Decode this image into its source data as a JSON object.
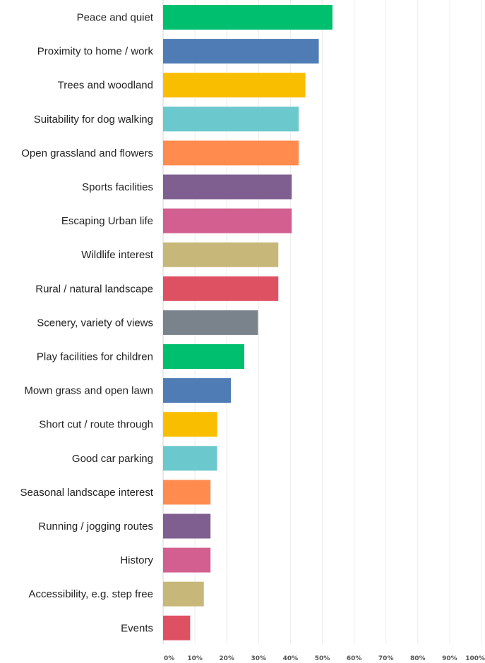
{
  "chart_data": {
    "type": "bar",
    "orientation": "horizontal",
    "title": "",
    "xlabel": "",
    "ylabel": "",
    "xlim": [
      0,
      100
    ],
    "grid": true,
    "legend": "none",
    "tick_values": [
      0,
      10,
      20,
      30,
      40,
      50,
      60,
      70,
      80,
      90,
      100
    ],
    "tick_labels": [
      "0%",
      "10%",
      "20%",
      "30%",
      "40%",
      "50%",
      "60%",
      "70%",
      "80%",
      "90%",
      "100%"
    ],
    "categories": [
      "Peace and quiet",
      "Proximity to home  / work",
      "Trees and woodland",
      "Suitability for dog walking",
      "Open grassland and flowers",
      "Sports facilities",
      "Escaping Urban life",
      "Wildlife interest",
      "Rural  / natural landscape",
      "Scenery, variety of views",
      "Play facilities for children",
      "Mown grass and open lawn",
      "Short cut / route through",
      "Good car parking",
      "Seasonal landscape interest",
      "Running / jogging routes",
      "History",
      "Accessibility, e.g. step free",
      "Events"
    ],
    "values": [
      53.2,
      48.9,
      44.7,
      42.6,
      42.6,
      40.4,
      40.4,
      36.2,
      36.2,
      29.8,
      25.5,
      21.3,
      17.0,
      17.0,
      14.9,
      14.9,
      14.9,
      12.8,
      8.5
    ],
    "colors": [
      "#00bf6f",
      "#507cb6",
      "#f9be00",
      "#6bc8cd",
      "#ff8b4f",
      "#7f5f90",
      "#d25f90",
      "#c7b879",
      "#de5163",
      "#7a838b",
      "#00bf6f",
      "#507cb6",
      "#f9be00",
      "#6bc8cd",
      "#ff8b4f",
      "#7f5f90",
      "#d25f90",
      "#c7b879",
      "#de5163"
    ]
  }
}
